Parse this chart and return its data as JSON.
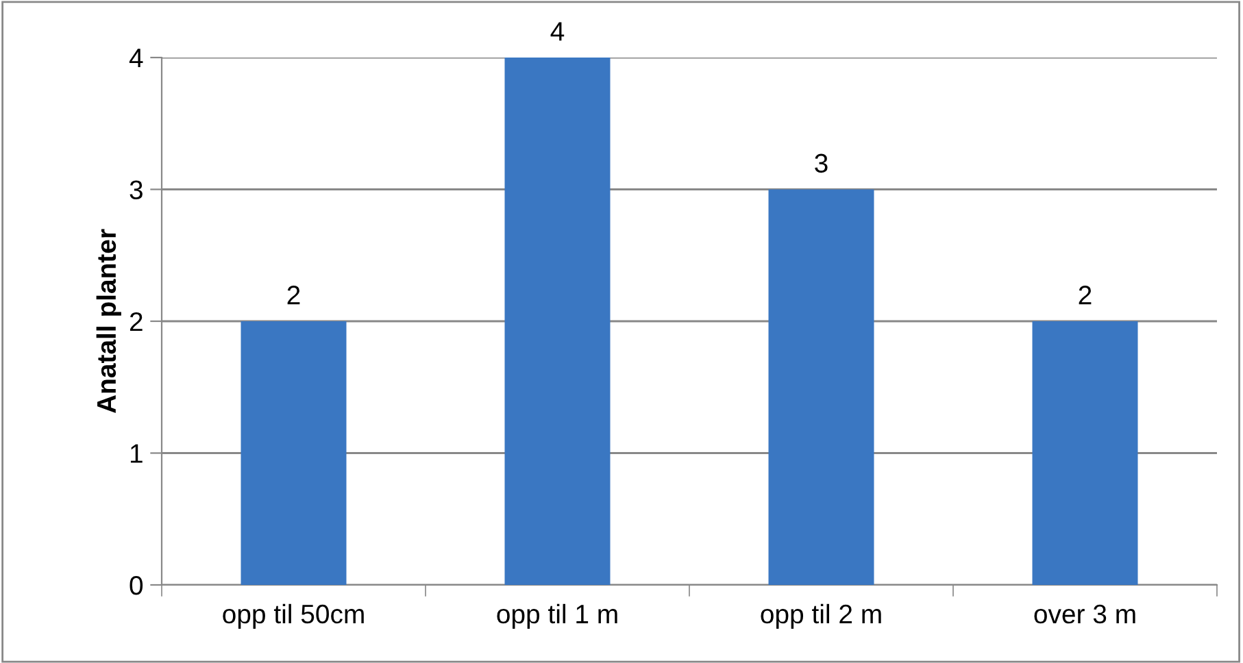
{
  "chart_data": {
    "type": "bar",
    "ylabel": "Anatall planter",
    "categories": [
      "opp til 50cm",
      "opp til 1 m",
      "opp til 2 m",
      "over 3 m"
    ],
    "values": [
      2,
      4,
      3,
      2
    ],
    "color": "#3a77c2",
    "ylim": [
      0,
      4
    ],
    "yticks": [
      0,
      1,
      2,
      3,
      4
    ],
    "grid": "y",
    "data_labels": true
  }
}
